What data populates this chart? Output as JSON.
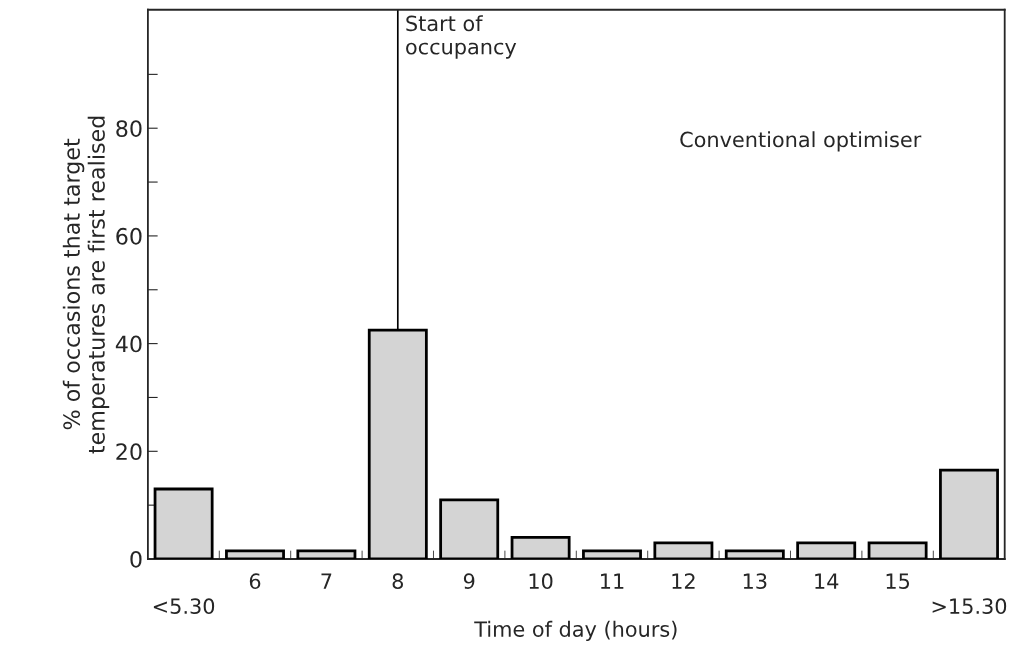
{
  "chart_data": {
    "type": "bar",
    "xlabel": "Time of day (hours)",
    "ylabel": "% of occasions that target\ntemperatures are first realised",
    "categories": [
      "<5.30",
      "6",
      "7",
      "8",
      "9",
      "10",
      "11",
      "12",
      "13",
      "14",
      "15",
      ">15.30"
    ],
    "values": [
      13,
      1.5,
      1.5,
      42.5,
      11,
      4,
      1.5,
      3,
      1.5,
      3,
      3,
      16.5
    ],
    "color": "#d4d4d4",
    "ylim": [
      0,
      102
    ],
    "yticks": [
      0,
      {
        "value": 10,
        "label": null
      },
      20,
      {
        "value": 30,
        "label": null
      },
      40,
      {
        "value": 50,
        "label": null
      },
      60,
      {
        "value": 70,
        "label": null
      },
      80,
      {
        "value": 90,
        "label": null
      }
    ],
    "ref_lines": [
      {
        "axis": "x",
        "value": "8",
        "label": "Start of\noccupancy",
        "color": "#000000"
      }
    ],
    "annotations": [
      "Conventional optimiser"
    ],
    "grid": false,
    "legend": false
  }
}
